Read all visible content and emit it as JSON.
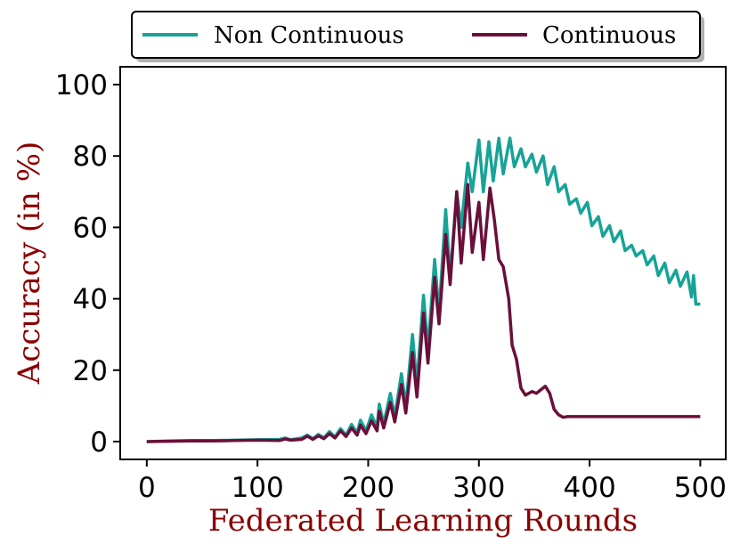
{
  "chart_data": {
    "type": "line",
    "title": "",
    "xlabel": "Federated Learning Rounds",
    "ylabel": "Accuracy (in %)",
    "xlim": [
      -24,
      523
    ],
    "ylim": [
      -5,
      105
    ],
    "x_ticks": [
      "0",
      "100",
      "200",
      "300",
      "400",
      "500"
    ],
    "x_tick_values": [
      0,
      100,
      200,
      300,
      400,
      500
    ],
    "y_ticks": [
      "0",
      "20",
      "40",
      "60",
      "80",
      "100"
    ],
    "y_tick_values": [
      0,
      20,
      40,
      60,
      80,
      100
    ],
    "grid": false,
    "legend_position": "top-center, above plot",
    "label_color": "#8b0000",
    "series": [
      {
        "name": "Non Continuous",
        "color": "#17a398",
        "points": [
          [
            0,
            0
          ],
          [
            20,
            0.2
          ],
          [
            40,
            0.3
          ],
          [
            60,
            0.3
          ],
          [
            80,
            0.4
          ],
          [
            100,
            0.5
          ],
          [
            120,
            0.6
          ],
          [
            125,
            1.0
          ],
          [
            130,
            0.5
          ],
          [
            140,
            1.0
          ],
          [
            145,
            1.8
          ],
          [
            150,
            0.8
          ],
          [
            155,
            2.0
          ],
          [
            160,
            1.0
          ],
          [
            165,
            2.8
          ],
          [
            170,
            1.3
          ],
          [
            175,
            3.6
          ],
          [
            180,
            1.8
          ],
          [
            185,
            4.8
          ],
          [
            190,
            2.4
          ],
          [
            193,
            6.0
          ],
          [
            198,
            3.0
          ],
          [
            203,
            7.5
          ],
          [
            208,
            4.0
          ],
          [
            210,
            10.5
          ],
          [
            214,
            5.0
          ],
          [
            220,
            13.5
          ],
          [
            224,
            7.0
          ],
          [
            230,
            19.0
          ],
          [
            234,
            10.0
          ],
          [
            240,
            30.0
          ],
          [
            244,
            16.0
          ],
          [
            250,
            41.0
          ],
          [
            254,
            26.0
          ],
          [
            260,
            51.0
          ],
          [
            264,
            36.0
          ],
          [
            270,
            65.0
          ],
          [
            274,
            46.0
          ],
          [
            280,
            70.0
          ],
          [
            284,
            60.0
          ],
          [
            290,
            78.0
          ],
          [
            294,
            70.0
          ],
          [
            300,
            84.5
          ],
          [
            304,
            70.0
          ],
          [
            309,
            84.0
          ],
          [
            313,
            73.0
          ],
          [
            318,
            85.0
          ],
          [
            322,
            75.0
          ],
          [
            328,
            85.0
          ],
          [
            332,
            77.0
          ],
          [
            338,
            82.0
          ],
          [
            342,
            77.0
          ],
          [
            348,
            80.5
          ],
          [
            352,
            75.5
          ],
          [
            358,
            80.0
          ],
          [
            362,
            72.0
          ],
          [
            368,
            77.0
          ],
          [
            372,
            70.0
          ],
          [
            378,
            72.0
          ],
          [
            382,
            66.5
          ],
          [
            388,
            68.0
          ],
          [
            392,
            64.0
          ],
          [
            398,
            67.0
          ],
          [
            402,
            60.5
          ],
          [
            408,
            63.0
          ],
          [
            412,
            57.5
          ],
          [
            418,
            60.5
          ],
          [
            422,
            56.0
          ],
          [
            428,
            59.0
          ],
          [
            432,
            53.5
          ],
          [
            438,
            55.0
          ],
          [
            442,
            52.0
          ],
          [
            448,
            53.5
          ],
          [
            452,
            49.5
          ],
          [
            458,
            52.0
          ],
          [
            462,
            46.5
          ],
          [
            468,
            50.0
          ],
          [
            472,
            44.5
          ],
          [
            478,
            48.0
          ],
          [
            482,
            43.5
          ],
          [
            488,
            47.5
          ],
          [
            492,
            40.5
          ],
          [
            494,
            46.5
          ],
          [
            496,
            38.5
          ],
          [
            500,
            38.5
          ]
        ]
      },
      {
        "name": "Continuous",
        "color": "#6b0f3a",
        "points": [
          [
            0,
            0
          ],
          [
            20,
            0.1
          ],
          [
            40,
            0.2
          ],
          [
            60,
            0.2
          ],
          [
            80,
            0.3
          ],
          [
            100,
            0.4
          ],
          [
            120,
            0.3
          ],
          [
            125,
            0.7
          ],
          [
            130,
            0.4
          ],
          [
            140,
            0.6
          ],
          [
            145,
            1.5
          ],
          [
            150,
            0.6
          ],
          [
            155,
            1.6
          ],
          [
            160,
            0.8
          ],
          [
            165,
            2.2
          ],
          [
            170,
            1.0
          ],
          [
            175,
            3.0
          ],
          [
            180,
            1.4
          ],
          [
            185,
            3.8
          ],
          [
            190,
            1.8
          ],
          [
            193,
            4.6
          ],
          [
            198,
            2.2
          ],
          [
            203,
            5.8
          ],
          [
            208,
            3.0
          ],
          [
            210,
            8.5
          ],
          [
            214,
            3.8
          ],
          [
            220,
            11.0
          ],
          [
            224,
            5.5
          ],
          [
            230,
            16.0
          ],
          [
            234,
            8.0
          ],
          [
            240,
            25.0
          ],
          [
            244,
            12.5
          ],
          [
            250,
            36.0
          ],
          [
            254,
            22.0
          ],
          [
            260,
            46.0
          ],
          [
            264,
            33.0
          ],
          [
            270,
            58.0
          ],
          [
            274,
            44.0
          ],
          [
            280,
            70.0
          ],
          [
            284,
            50.0
          ],
          [
            290,
            72.0
          ],
          [
            294,
            53.0
          ],
          [
            300,
            67.0
          ],
          [
            304,
            51.0
          ],
          [
            310,
            71.0
          ],
          [
            314,
            62.0
          ],
          [
            318,
            51.0
          ],
          [
            322,
            49.0
          ],
          [
            327,
            40.0
          ],
          [
            330,
            27.0
          ],
          [
            334,
            23.0
          ],
          [
            338,
            15.0
          ],
          [
            342,
            13.0
          ],
          [
            348,
            14.0
          ],
          [
            352,
            13.5
          ],
          [
            356,
            14.5
          ],
          [
            360,
            15.5
          ],
          [
            364,
            13.5
          ],
          [
            368,
            9.0
          ],
          [
            372,
            7.5
          ],
          [
            376,
            6.8
          ],
          [
            380,
            7.0
          ],
          [
            400,
            7.0
          ],
          [
            450,
            7.0
          ],
          [
            500,
            7.0
          ]
        ]
      }
    ]
  }
}
